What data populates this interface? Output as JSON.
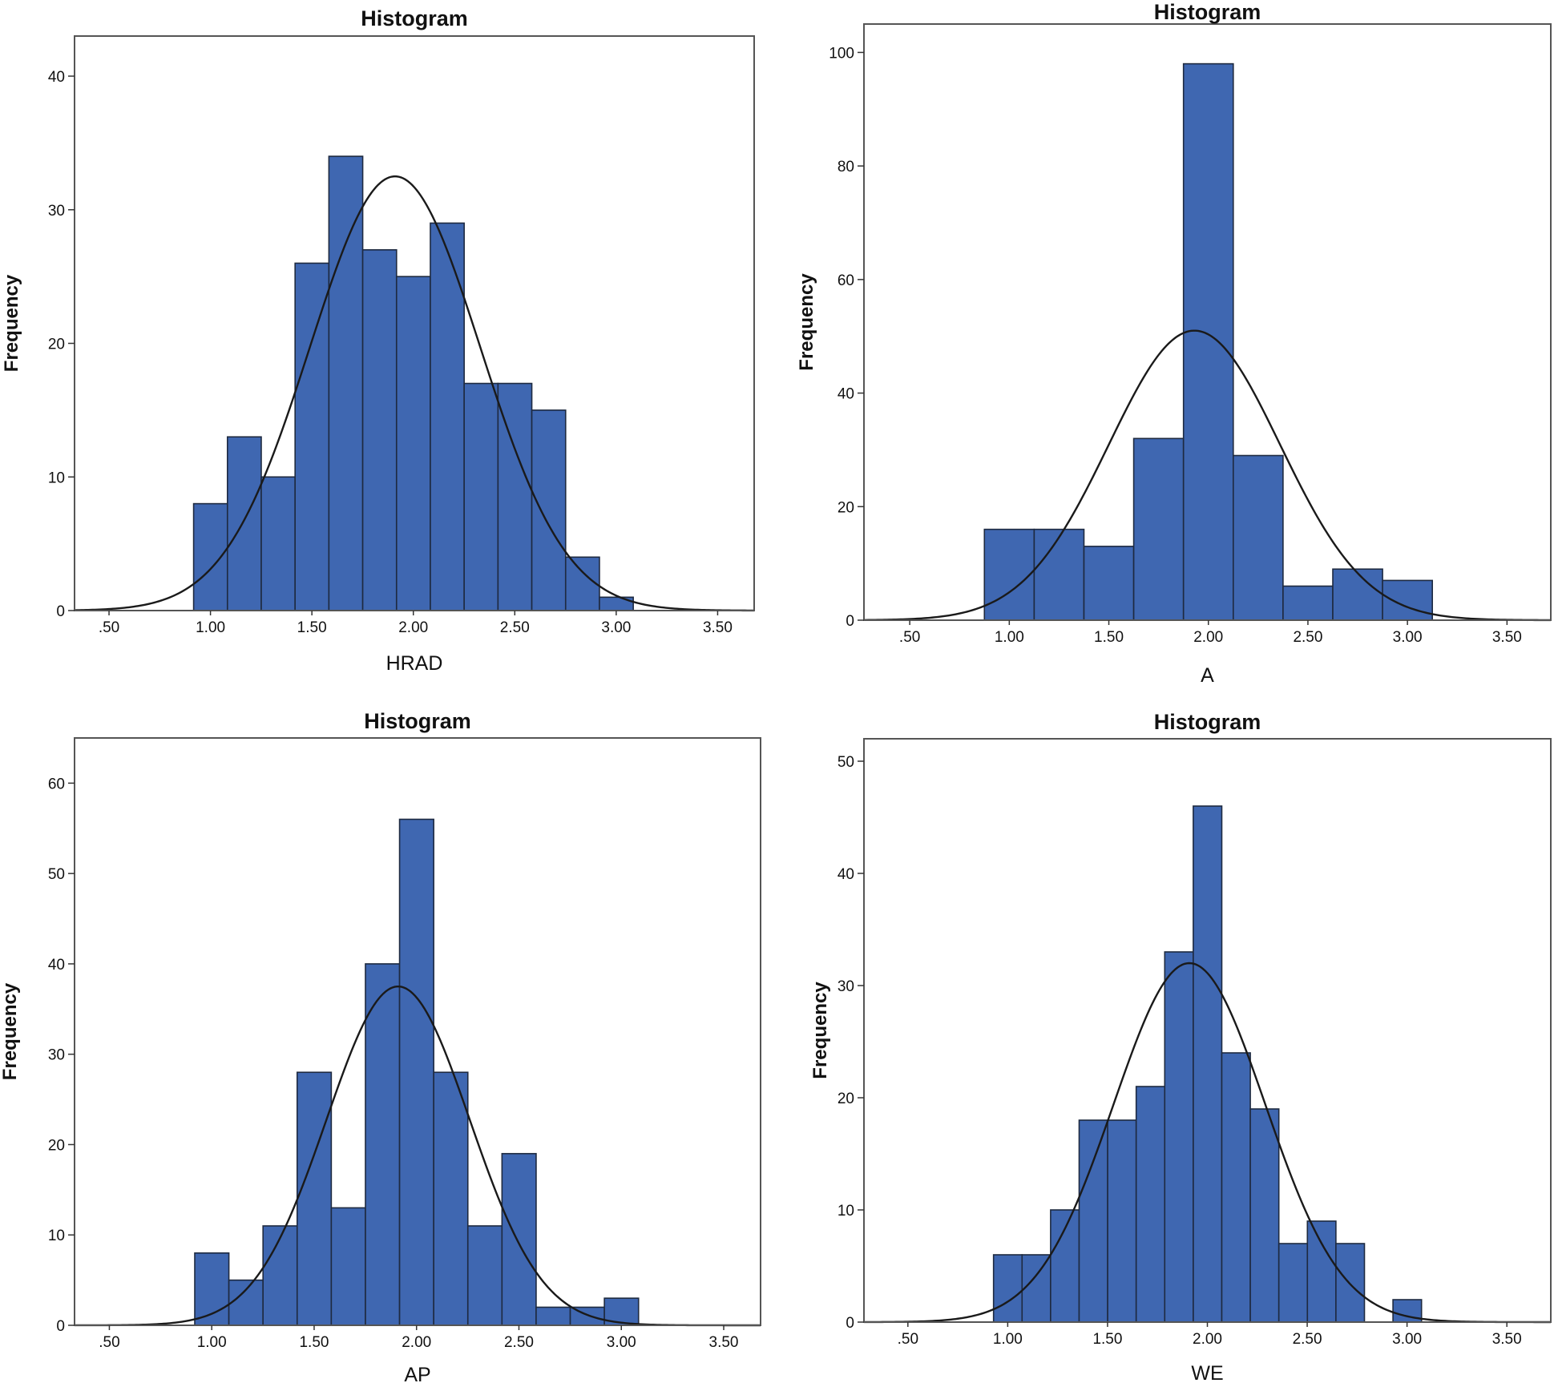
{
  "colors": {
    "bar": "#3f67b1",
    "bar_edge": "#1e2a40",
    "curve": "#1a1a1a",
    "frame": "#555555"
  },
  "chart_data": [
    {
      "type": "bar",
      "title": "Histogram",
      "xlabel": "HRAD",
      "ylabel": "Frequency",
      "xlim": [
        0.33,
        3.68
      ],
      "ylim": [
        0,
        43
      ],
      "xticks": [
        0.5,
        1.0,
        1.5,
        2.0,
        2.5,
        3.0,
        3.5
      ],
      "xtick_labels": [
        ".50",
        "1.00",
        "1.50",
        "2.00",
        "2.50",
        "3.00",
        "3.50"
      ],
      "yticks": [
        0,
        10,
        20,
        30,
        40
      ],
      "bin_start": 0.917,
      "bin_width": 0.1667,
      "values": [
        8,
        13,
        10,
        26,
        34,
        27,
        25,
        29,
        17,
        17,
        15,
        4,
        1
      ],
      "normal_curve": {
        "mean": 1.91,
        "peak": 32.5,
        "sd": 0.42
      }
    },
    {
      "type": "bar",
      "title": "Histogram",
      "xlabel": "A",
      "ylabel": "Frequency",
      "xlim": [
        0.27,
        3.72
      ],
      "ylim": [
        0,
        105
      ],
      "xticks": [
        0.5,
        1.0,
        1.5,
        2.0,
        2.5,
        3.0,
        3.5
      ],
      "xtick_labels": [
        ".50",
        "1.00",
        "1.50",
        "2.00",
        "2.50",
        "3.00",
        "3.50"
      ],
      "yticks": [
        0,
        20,
        40,
        60,
        80,
        100
      ],
      "bin_start": 0.875,
      "bin_width": 0.25,
      "values": [
        16,
        16,
        13,
        32,
        98,
        29,
        6,
        9,
        7
      ],
      "normal_curve": {
        "mean": 1.93,
        "peak": 51,
        "sd": 0.43
      }
    },
    {
      "type": "bar",
      "title": "Histogram",
      "xlabel": "AP",
      "ylabel": "Frequency",
      "xlim": [
        0.33,
        3.68
      ],
      "ylim": [
        0,
        65
      ],
      "xticks": [
        0.5,
        1.0,
        1.5,
        2.0,
        2.5,
        3.0,
        3.5
      ],
      "xtick_labels": [
        ".50",
        "1.00",
        "1.50",
        "2.00",
        "2.50",
        "3.00",
        "3.50"
      ],
      "yticks": [
        0,
        10,
        20,
        30,
        40,
        50,
        60
      ],
      "bin_start": 0.917,
      "bin_width": 0.1667,
      "values": [
        8,
        5,
        11,
        28,
        13,
        40,
        56,
        28,
        11,
        19,
        2,
        2,
        3
      ],
      "normal_curve": {
        "mean": 1.91,
        "peak": 37.5,
        "sd": 0.35
      }
    },
    {
      "type": "bar",
      "title": "Histogram",
      "xlabel": "WE",
      "ylabel": "Frequency",
      "xlim": [
        0.28,
        3.72
      ],
      "ylim": [
        0,
        52
      ],
      "xticks": [
        0.5,
        1.0,
        1.5,
        2.0,
        2.5,
        3.0,
        3.5
      ],
      "xtick_labels": [
        ".50",
        "1.00",
        "1.50",
        "2.00",
        "2.50",
        "3.00",
        "3.50"
      ],
      "yticks": [
        0,
        10,
        20,
        30,
        40,
        50
      ],
      "bin_start": 0.929,
      "bin_width": 0.1429,
      "values": [
        6,
        6,
        10,
        18,
        18,
        21,
        33,
        46,
        24,
        19,
        7,
        9,
        7,
        0,
        2
      ],
      "normal_curve": {
        "mean": 1.91,
        "peak": 32,
        "sd": 0.38
      }
    }
  ]
}
